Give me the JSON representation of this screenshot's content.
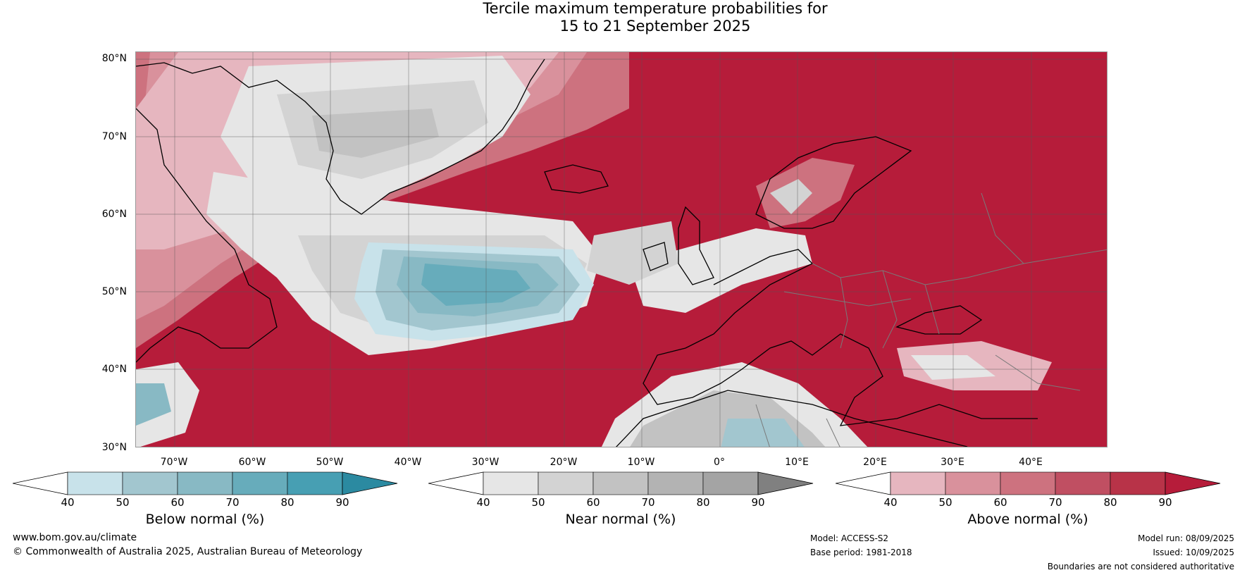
{
  "title": {
    "line1": "Tercile maximum temperature probabilities for",
    "line2": "15 to 21 September 2025"
  },
  "map": {
    "lat_labels": [
      "80°N",
      "70°N",
      "60°N",
      "50°N",
      "40°N",
      "30°N"
    ],
    "lon_labels": [
      "70°W",
      "60°W",
      "50°W",
      "40°W",
      "30°W",
      "20°W",
      "10°W",
      "0°",
      "10°E",
      "20°E",
      "30°E",
      "40°E"
    ],
    "colors": {
      "above": [
        "#e6b6bf",
        "#d9919c",
        "#cd727f",
        "#c04f62",
        "#b61c3a"
      ],
      "near": [
        "#e6e6e6",
        "#d3d3d3",
        "#c2c2c2",
        "#b3b3b3",
        "#a4a4a4",
        "#808080"
      ],
      "below": [
        "#c8e2ea",
        "#a2c6cf",
        "#88b9c4",
        "#67acbb",
        "#479fb3",
        "#2b8aa1"
      ],
      "coast": "#000000",
      "borders": "#7a7a7a"
    }
  },
  "colorbars": [
    {
      "title": "Below normal (%)",
      "ticks": [
        "40",
        "50",
        "60",
        "70",
        "80",
        "90"
      ],
      "colors": [
        "#ffffff",
        "#c8e2ea",
        "#a2c6cf",
        "#88b9c4",
        "#67acbb",
        "#479fb3",
        "#2b8aa1"
      ]
    },
    {
      "title": "Near normal (%)",
      "ticks": [
        "40",
        "50",
        "60",
        "70",
        "80",
        "90"
      ],
      "colors": [
        "#ffffff",
        "#e6e6e6",
        "#d3d3d3",
        "#c2c2c2",
        "#b3b3b3",
        "#a4a4a4",
        "#808080"
      ]
    },
    {
      "title": "Above normal (%)",
      "ticks": [
        "40",
        "50",
        "60",
        "70",
        "80",
        "90"
      ],
      "colors": [
        "#ffffff",
        "#e6b6bf",
        "#d9919c",
        "#cd727f",
        "#c04f62",
        "#b83348",
        "#b61c3a"
      ]
    }
  ],
  "footer": {
    "website": "www.bom.gov.au/climate",
    "copyright": "© Commonwealth of Australia 2025, Australian Bureau of Meteorology",
    "model": "Model: ACCESS-S2",
    "base_period": "Base period: 1981-2018",
    "model_run": "Model run: 08/09/2025",
    "issued": "Issued: 10/09/2025",
    "disclaimer": "Boundaries are not considered authoritative"
  }
}
